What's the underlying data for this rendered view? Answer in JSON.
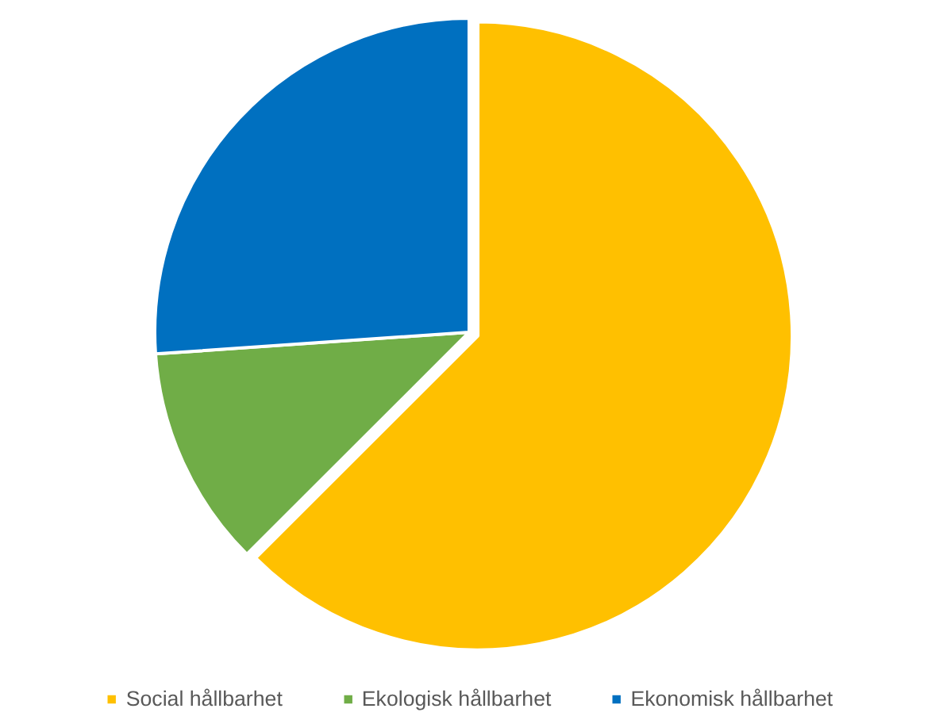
{
  "chart_data": {
    "type": "pie",
    "categories": [
      "Social hållbarhet",
      "Ekologisk hållbarhet",
      "Ekonomisk hållbarhet"
    ],
    "values": [
      62.5,
      11.4,
      26.1
    ],
    "colors": [
      "#ffc000",
      "#70ad47",
      "#0070c0"
    ],
    "legend": "bottom"
  }
}
